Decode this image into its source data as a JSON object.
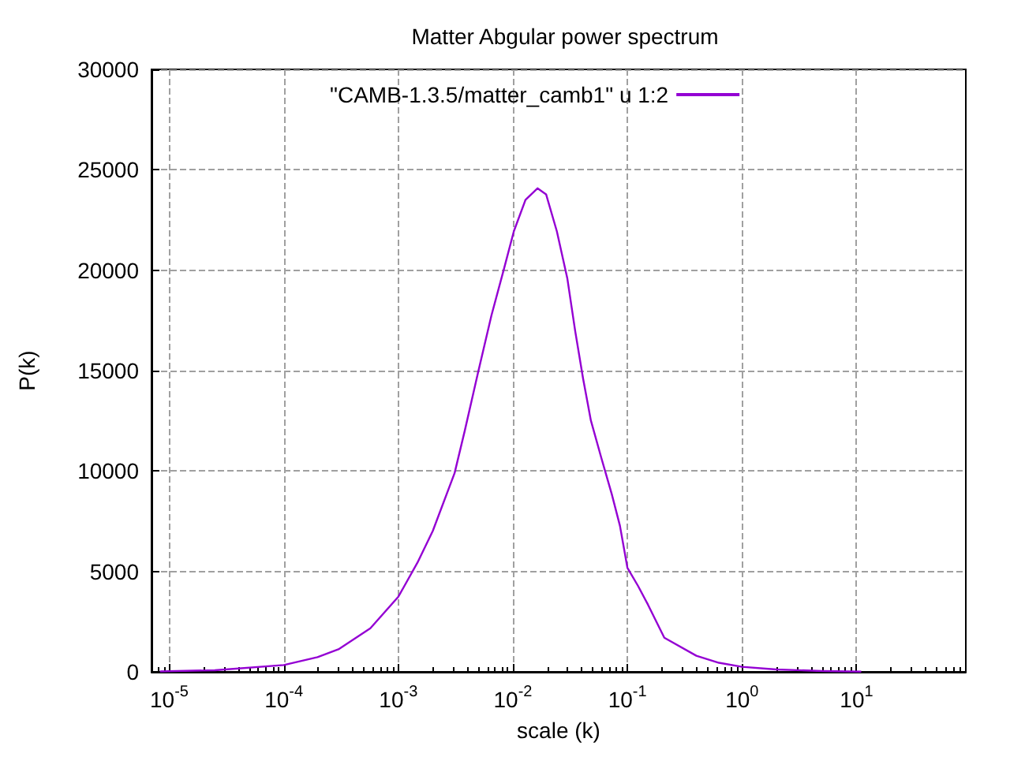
{
  "chart_data": {
    "type": "line",
    "title": "Matter Abgular power spectrum",
    "xlabel": "scale (k)",
    "ylabel": "P(k)",
    "log": "x",
    "xlim": [
      7e-06,
      90
    ],
    "xticks": [
      {
        "value": 1e-05,
        "label": "10$^{-5}$"
      },
      {
        "value": 0.0001,
        "label": "10$^{-4}$"
      },
      {
        "value": 0.001,
        "label": "10$^{-3}$"
      },
      {
        "value": 0.01,
        "label": "10$^{-2}$"
      },
      {
        "value": 0.1,
        "label": "10$^{-1}$"
      },
      {
        "value": 1,
        "label": "10$^{0}$"
      },
      {
        "value": 10,
        "label": "10$^{1}$"
      }
    ],
    "ylim": [
      0,
      30000
    ],
    "yticks": [
      0,
      5000,
      10000,
      15000,
      20000,
      25000,
      30000
    ],
    "grid": true,
    "legend": "top",
    "marker": "none",
    "line_style": "solid",
    "series": [
      {
        "name": "\"CAMB-1.3.5/matter_camb1\" u 1:2",
        "color": "#9400d3",
        "x": [
          8.3e-06,
          2.5e-05,
          0.0001,
          0.000197,
          0.0003,
          0.00057,
          0.001,
          0.00147,
          0.002,
          0.0031,
          0.0038,
          0.00495,
          0.0065,
          0.0084,
          0.0102,
          0.0129,
          0.0164,
          0.0195,
          0.0242,
          0.0299,
          0.035,
          0.041,
          0.048,
          0.059,
          0.073,
          0.086,
          0.1,
          0.124,
          0.151,
          0.21,
          0.4,
          0.63,
          1,
          2,
          5,
          11
        ],
        "values": [
          20,
          80,
          340,
          730,
          1120,
          2170,
          3740,
          5440,
          7020,
          9900,
          12000,
          14870,
          17750,
          20110,
          21940,
          23510,
          24080,
          23780,
          21940,
          19580,
          16970,
          14610,
          12510,
          10680,
          8850,
          7280,
          5180,
          4270,
          3350,
          1700,
          800,
          450,
          250,
          120,
          40,
          10
        ]
      }
    ]
  }
}
